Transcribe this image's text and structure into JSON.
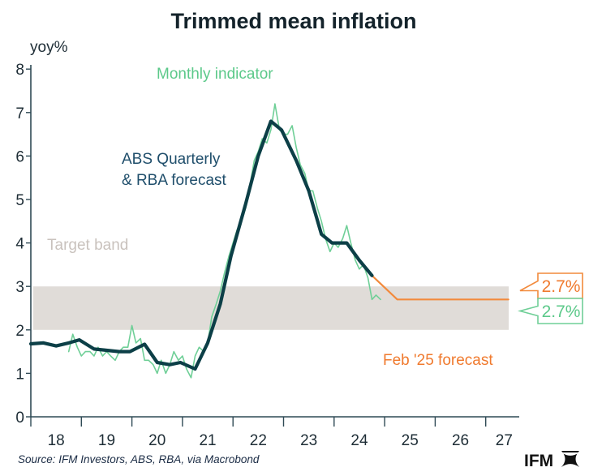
{
  "chart_data": {
    "type": "line",
    "title": "Trimmed mean inflation",
    "ylabel": "yoy%",
    "xlabel": "",
    "ylim": [
      0,
      8
    ],
    "xlim": [
      2018.0,
      2027.7
    ],
    "y_ticks": [
      "0",
      "1",
      "2",
      "3",
      "4",
      "5",
      "6",
      "7",
      "8"
    ],
    "x_ticks": [
      "18",
      "19",
      "20",
      "21",
      "22",
      "23",
      "24",
      "25",
      "26",
      "27"
    ],
    "grid": false,
    "target_band": {
      "label": "Target band",
      "low": 2,
      "high": 3,
      "color": "#e0dcd8",
      "label_color": "#c9c2bd"
    },
    "series": [
      {
        "name": "Monthly indicator",
        "color": "#6fcf97",
        "label_color": "#5cc98a",
        "points": [
          [
            2018.75,
            1.5
          ],
          [
            2018.83,
            1.9
          ],
          [
            2018.92,
            1.6
          ],
          [
            2019.0,
            1.4
          ],
          [
            2019.08,
            1.5
          ],
          [
            2019.17,
            1.5
          ],
          [
            2019.25,
            1.4
          ],
          [
            2019.33,
            1.6
          ],
          [
            2019.42,
            1.4
          ],
          [
            2019.5,
            1.5
          ],
          [
            2019.58,
            1.4
          ],
          [
            2019.67,
            1.3
          ],
          [
            2019.75,
            1.5
          ],
          [
            2019.83,
            1.6
          ],
          [
            2019.92,
            1.6
          ],
          [
            2020.0,
            2.1
          ],
          [
            2020.08,
            1.7
          ],
          [
            2020.17,
            1.8
          ],
          [
            2020.25,
            1.3
          ],
          [
            2020.33,
            1.3
          ],
          [
            2020.42,
            1.2
          ],
          [
            2020.5,
            1.0
          ],
          [
            2020.58,
            1.3
          ],
          [
            2020.67,
            1.0
          ],
          [
            2020.75,
            1.2
          ],
          [
            2020.83,
            1.5
          ],
          [
            2020.92,
            1.3
          ],
          [
            2021.0,
            1.4
          ],
          [
            2021.08,
            1.1
          ],
          [
            2021.17,
            0.9
          ],
          [
            2021.25,
            1.4
          ],
          [
            2021.33,
            1.6
          ],
          [
            2021.42,
            1.5
          ],
          [
            2021.5,
            1.7
          ],
          [
            2021.58,
            2.3
          ],
          [
            2021.67,
            2.6
          ],
          [
            2021.75,
            2.9
          ],
          [
            2021.83,
            3.3
          ],
          [
            2021.92,
            3.7
          ],
          [
            2022.0,
            4.0
          ],
          [
            2022.08,
            4.3
          ],
          [
            2022.17,
            4.5
          ],
          [
            2022.25,
            4.8
          ],
          [
            2022.33,
            5.3
          ],
          [
            2022.42,
            5.9
          ],
          [
            2022.5,
            6.1
          ],
          [
            2022.58,
            6.4
          ],
          [
            2022.67,
            6.3
          ],
          [
            2022.75,
            6.6
          ],
          [
            2022.83,
            7.2
          ],
          [
            2022.92,
            6.6
          ],
          [
            2023.0,
            6.5
          ],
          [
            2023.08,
            6.5
          ],
          [
            2023.17,
            6.7
          ],
          [
            2023.25,
            6.2
          ],
          [
            2023.33,
            5.8
          ],
          [
            2023.42,
            5.6
          ],
          [
            2023.5,
            5.2
          ],
          [
            2023.58,
            5.2
          ],
          [
            2023.67,
            4.8
          ],
          [
            2023.75,
            4.5
          ],
          [
            2023.83,
            4.1
          ],
          [
            2023.92,
            3.8
          ],
          [
            2024.0,
            4.0
          ],
          [
            2024.08,
            3.9
          ],
          [
            2024.17,
            4.1
          ],
          [
            2024.25,
            4.4
          ],
          [
            2024.33,
            4.0
          ],
          [
            2024.42,
            3.6
          ],
          [
            2024.5,
            3.4
          ],
          [
            2024.58,
            3.5
          ],
          [
            2024.67,
            3.2
          ],
          [
            2024.75,
            2.7
          ],
          [
            2024.83,
            2.8
          ],
          [
            2024.92,
            2.7
          ]
        ]
      },
      {
        "name": "ABS Quarterly & RBA forecast",
        "color": "#0c3f47",
        "label_color": "#1f4e6b",
        "points": [
          [
            2018.0,
            1.68
          ],
          [
            2018.25,
            1.7
          ],
          [
            2018.5,
            1.63
          ],
          [
            2018.75,
            1.7
          ],
          [
            2018.96,
            1.77
          ],
          [
            2019.25,
            1.56
          ],
          [
            2019.5,
            1.53
          ],
          [
            2019.75,
            1.5
          ],
          [
            2019.96,
            1.5
          ],
          [
            2020.25,
            1.67
          ],
          [
            2020.5,
            1.25
          ],
          [
            2020.75,
            1.2
          ],
          [
            2020.96,
            1.25
          ],
          [
            2021.25,
            1.1
          ],
          [
            2021.5,
            1.7
          ],
          [
            2021.75,
            2.6
          ],
          [
            2021.96,
            3.7
          ],
          [
            2022.25,
            4.9
          ],
          [
            2022.5,
            6.0
          ],
          [
            2022.75,
            6.8
          ],
          [
            2022.96,
            6.6
          ],
          [
            2023.25,
            5.9
          ],
          [
            2023.5,
            5.2
          ],
          [
            2023.75,
            4.2
          ],
          [
            2023.96,
            4.0
          ],
          [
            2024.25,
            4.0
          ],
          [
            2024.5,
            3.6
          ],
          [
            2024.75,
            3.25
          ]
        ]
      },
      {
        "name": "Feb '25 forecast",
        "color": "#f28a3c",
        "label_color": "#f07a2e",
        "points": [
          [
            2024.75,
            3.25
          ],
          [
            2025.25,
            2.7
          ],
          [
            2027.45,
            2.7
          ]
        ]
      }
    ],
    "annotations": [
      {
        "text": "Monthly indicator",
        "series": "Monthly indicator"
      },
      {
        "text_line1": "ABS Quarterly",
        "text_line2": "& RBA forecast",
        "series": "ABS Quarterly & RBA forecast"
      },
      {
        "text": "Target band"
      },
      {
        "text": "Feb '25 forecast",
        "series": "Feb '25 forecast"
      }
    ],
    "callouts": [
      {
        "text": "2.7%",
        "value": 2.7,
        "color": "#f28a3c",
        "text_color": "#f07a2e",
        "series": "Feb '25 forecast"
      },
      {
        "text": "2.7%",
        "value": 2.7,
        "color": "#6fcf97",
        "text_color": "#5cc98a",
        "series": "Monthly indicator"
      }
    ]
  },
  "footer": {
    "source": "Source: IFM Investors, ABS, RBA, via Macrobond",
    "logo_text": "IFM"
  },
  "colors": {
    "axis": "#2f4a55",
    "text": "#1e2d36"
  }
}
